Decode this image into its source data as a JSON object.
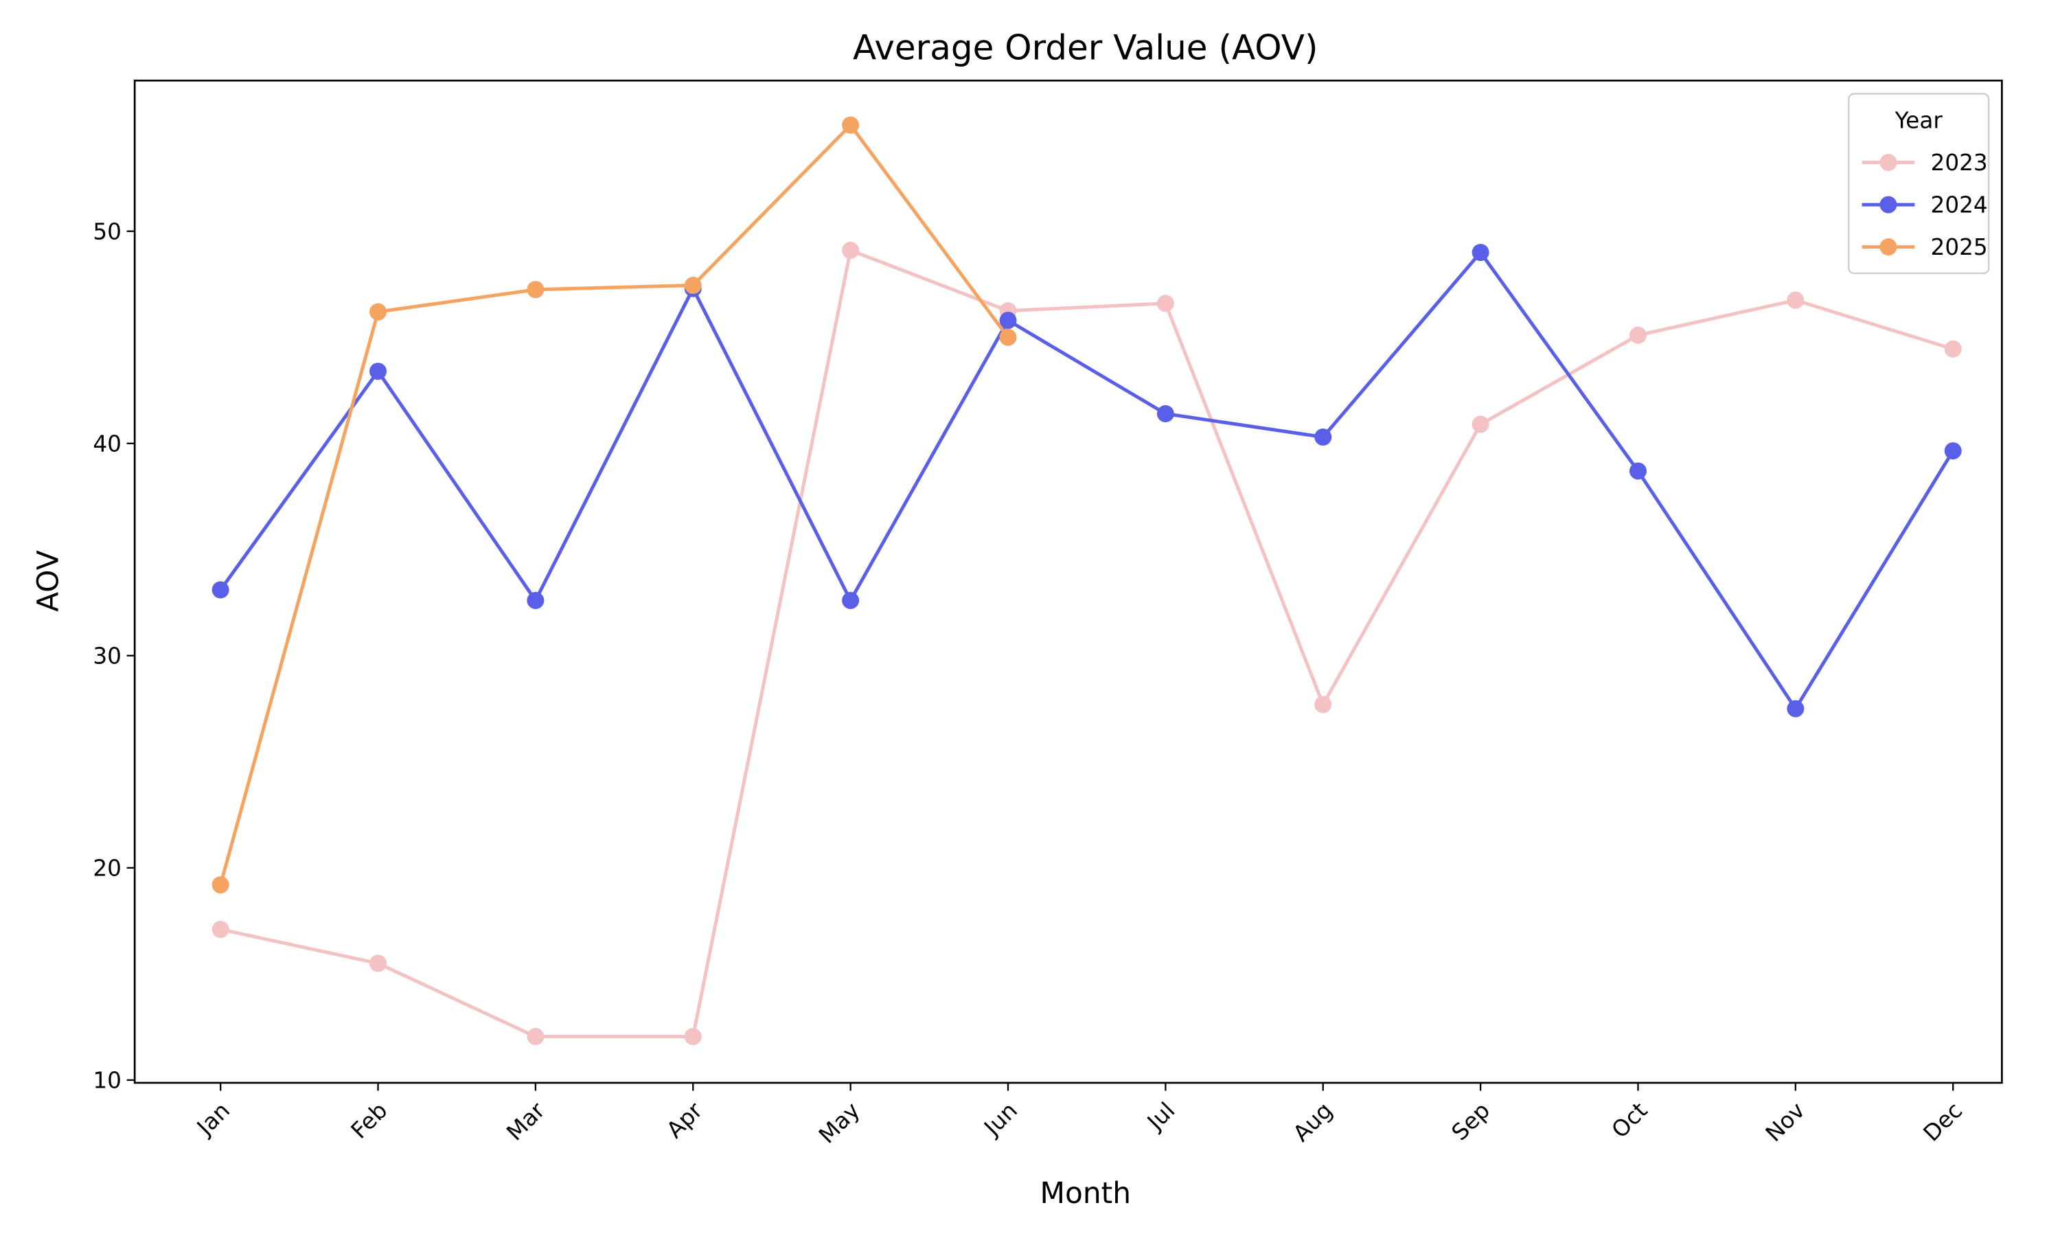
{
  "chart_data": {
    "type": "line",
    "title": "Average Order Value (AOV)",
    "x_label": "Month",
    "y_label": "AOV",
    "categories": [
      "Jan",
      "Feb",
      "Mar",
      "Apr",
      "May",
      "Jun",
      "Jul",
      "Aug",
      "Sep",
      "Oct",
      "Nov",
      "Dec"
    ],
    "series": [
      {
        "name": "2023",
        "color": "#f4c2c2",
        "values": [
          17.1,
          15.5,
          12.05,
          12.05,
          49.1,
          46.25,
          46.6,
          27.7,
          40.9,
          45.1,
          46.75,
          44.45
        ]
      },
      {
        "name": "2024",
        "color": "#5a5fe8",
        "values": [
          33.1,
          43.4,
          32.6,
          47.3,
          32.6,
          45.8,
          41.4,
          40.3,
          49.0,
          38.7,
          27.5,
          39.65
        ]
      },
      {
        "name": "2025",
        "color": "#f4a460",
        "values": [
          19.2,
          46.2,
          47.25,
          47.45,
          55.0,
          45.0,
          null,
          null,
          null,
          null,
          null,
          null
        ]
      }
    ],
    "legend_title": "Year",
    "legend": "upper right",
    "ylim": [
      9.87,
      57.1
    ],
    "yticks": [
      10,
      20,
      30,
      40,
      50
    ],
    "grid": false
  }
}
